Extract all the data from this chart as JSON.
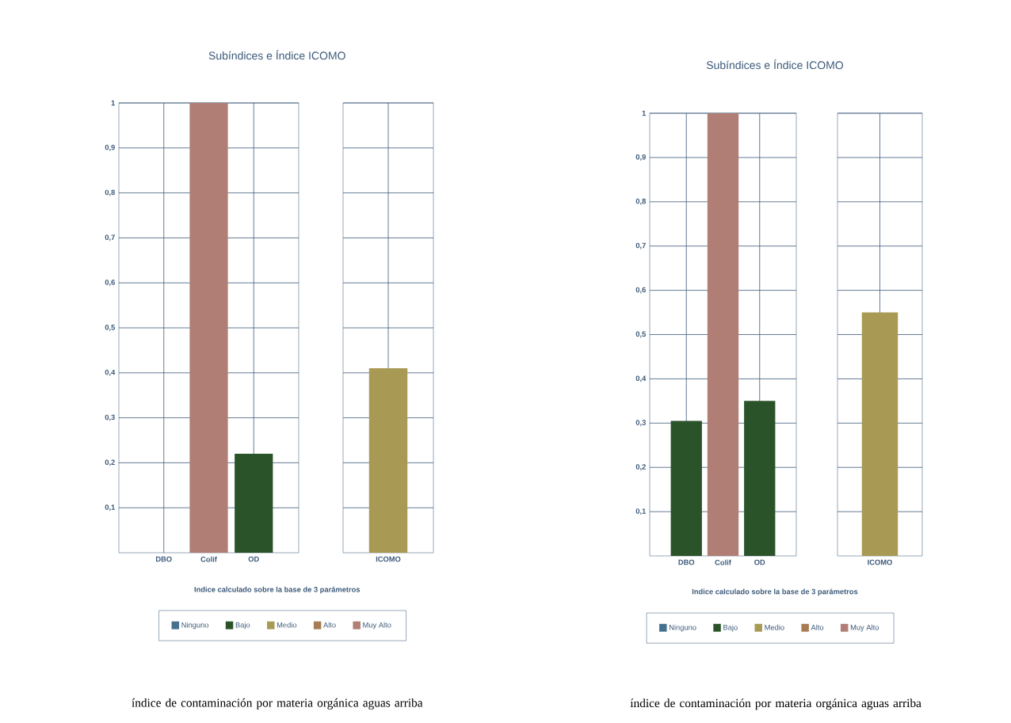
{
  "chart_data": [
    {
      "type": "bar",
      "title": "Subíndices e Índice ICOMO",
      "xlabel": "Indice calculado sobre la base de 3 parámetros",
      "categories": [
        "DBO",
        "Colif",
        "OD"
      ],
      "series": [
        {
          "name": "Ninguno",
          "color": "#45708e",
          "values": [
            null,
            null,
            null
          ]
        },
        {
          "name": "Bajo",
          "color": "#2b5329",
          "values": [
            null,
            null,
            0.22
          ]
        },
        {
          "name": "Medio",
          "color": "#a89a55",
          "values": [
            null,
            null,
            null
          ]
        },
        {
          "name": "Alto",
          "color": "#a87c52",
          "values": [
            null,
            null,
            null
          ]
        },
        {
          "name": "Muy Alto",
          "color": "#b07e74",
          "values": [
            null,
            1,
            null
          ]
        }
      ],
      "ylim": [
        0,
        1
      ],
      "yticks": [
        {
          "value": 0.1,
          "label": "0,1"
        },
        {
          "value": 0.2,
          "label": "0,2"
        },
        {
          "value": 0.3,
          "label": "0,3"
        },
        {
          "value": 0.4,
          "label": "0,4"
        },
        {
          "value": 0.5,
          "label": "0,5"
        },
        {
          "value": 0.6,
          "label": "0,6"
        },
        {
          "value": 0.7,
          "label": "0,7"
        },
        {
          "value": 0.8,
          "label": "0,8"
        },
        {
          "value": 0.9,
          "label": "0,9"
        },
        1
      ],
      "grid": true,
      "legend": "bottom",
      "annotations": [
        "índice de contaminación por materia orgánica aguas arriba"
      ]
    },
    {
      "type": "bar",
      "categories": [
        "ICOMO"
      ],
      "series": [
        {
          "color": "#a89a55",
          "values": [
            0.41
          ]
        }
      ],
      "ylim": [
        0,
        1
      ],
      "yticks": [
        {
          "value": 0.1,
          "label": null
        },
        {
          "value": 0.2,
          "label": null
        },
        {
          "value": 0.3,
          "label": null
        },
        {
          "value": 0.4,
          "label": null
        },
        {
          "value": 0.5,
          "label": null
        },
        {
          "value": 0.6,
          "label": null
        },
        {
          "value": 0.7,
          "label": null
        },
        {
          "value": 0.8,
          "label": null
        },
        {
          "value": 0.9,
          "label": null
        },
        {
          "value": 1,
          "label": null
        }
      ],
      "grid": true,
      "tick_labels": "x"
    },
    {
      "type": "bar",
      "title": "Subíndices e Índice ICOMO",
      "xlabel": "Indice calculado sobre la base de 3 parámetros",
      "categories": [
        "DBO",
        "Colif",
        "OD"
      ],
      "series": [
        {
          "name": "Ninguno",
          "color": "#45708e",
          "values": [
            null,
            null,
            null
          ]
        },
        {
          "name": "Bajo",
          "color": "#2b5329",
          "values": [
            0.305,
            null,
            0.35
          ]
        },
        {
          "name": "Medio",
          "color": "#a89a55",
          "values": [
            null,
            null,
            null
          ]
        },
        {
          "name": "Alto",
          "color": "#a87c52",
          "values": [
            null,
            null,
            null
          ]
        },
        {
          "name": "Muy Alto",
          "color": "#b07e74",
          "values": [
            null,
            1,
            null
          ]
        }
      ],
      "ylim": [
        0,
        1
      ],
      "yticks": [
        {
          "value": 0.1,
          "label": "0,1"
        },
        {
          "value": 0.2,
          "label": "0,2"
        },
        {
          "value": 0.3,
          "label": "0,3"
        },
        {
          "value": 0.4,
          "label": "0,4"
        },
        {
          "value": 0.5,
          "label": "0,5"
        },
        {
          "value": 0.6,
          "label": "0,6"
        },
        {
          "value": 0.7,
          "label": "0,7"
        },
        {
          "value": 0.8,
          "label": "0,8"
        },
        {
          "value": 0.9,
          "label": "0,9"
        },
        1
      ],
      "grid": true,
      "legend": "bottom",
      "annotations": [
        "índice de contaminación por materia orgánica aguas arriba"
      ]
    },
    {
      "type": "bar",
      "categories": [
        "ICOMO"
      ],
      "series": [
        {
          "color": "#a89a55",
          "values": [
            0.55
          ]
        }
      ],
      "ylim": [
        0,
        1
      ],
      "yticks": [
        {
          "value": 0.1,
          "label": null
        },
        {
          "value": 0.2,
          "label": null
        },
        {
          "value": 0.3,
          "label": null
        },
        {
          "value": 0.4,
          "label": null
        },
        {
          "value": 0.5,
          "label": null
        },
        {
          "value": 0.6,
          "label": null
        },
        {
          "value": 0.7,
          "label": null
        },
        {
          "value": 0.8,
          "label": null
        },
        {
          "value": 0.9,
          "label": null
        },
        {
          "value": 1,
          "label": null
        }
      ],
      "grid": true,
      "tick_labels": "x"
    }
  ]
}
